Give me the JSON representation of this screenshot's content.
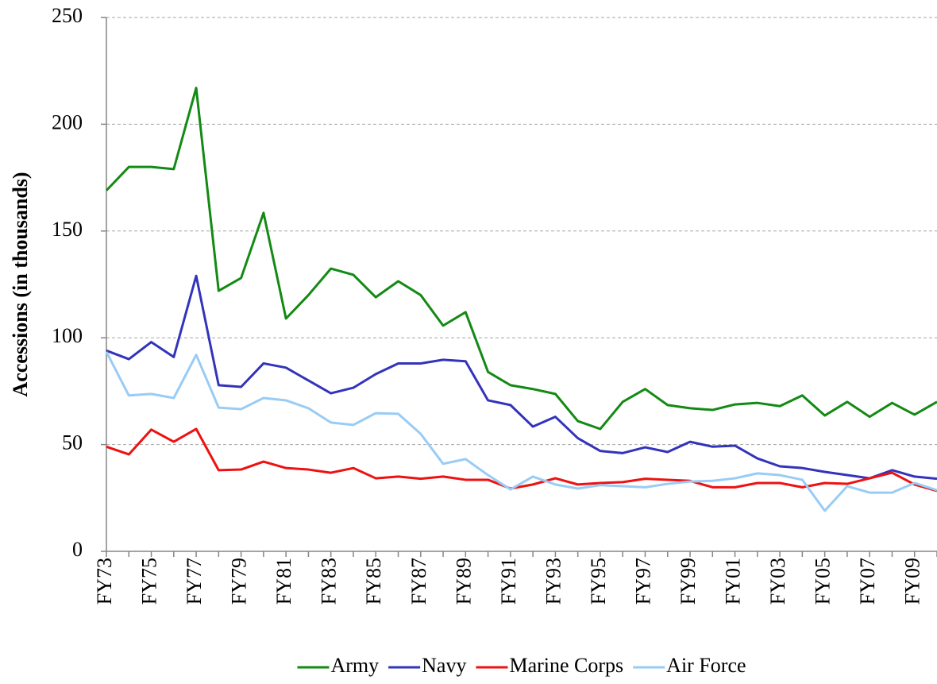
{
  "chart_data": {
    "type": "line",
    "y_label": "Accessions (in thousands)",
    "categories": [
      "FY73",
      null,
      "FY75",
      null,
      "FY77",
      null,
      "FY79",
      null,
      "FY81",
      null,
      "FY83",
      null,
      "FY85",
      null,
      "FY87",
      null,
      "FY89",
      null,
      "FY91",
      null,
      "FY93",
      null,
      "FY95",
      null,
      "FY97",
      null,
      "FY99",
      null,
      "FY01",
      null,
      "FY03",
      null,
      "FY05",
      null,
      "FY07",
      null,
      "FY09",
      null
    ],
    "series": [
      {
        "name": "Army",
        "color": "#138a13",
        "values": [
          169,
          180,
          180,
          179,
          217,
          122,
          128,
          158.5,
          109,
          120,
          132.4,
          129.5,
          119,
          126.5,
          120,
          105.7,
          112,
          84,
          77.8,
          76,
          73.7,
          61,
          57.3,
          70,
          76,
          68.5,
          67,
          66.2,
          68.8,
          69.5,
          68,
          73,
          63.6,
          70,
          63,
          69.5,
          64,
          70
        ]
      },
      {
        "name": "Navy",
        "color": "#3333bb",
        "values": [
          94,
          90,
          98,
          91,
          129,
          77.8,
          77,
          88,
          86,
          80,
          74,
          76.6,
          83,
          88,
          88,
          89.7,
          89,
          70.7,
          68.5,
          58.4,
          63,
          53,
          47,
          46,
          48.7,
          46.5,
          51.3,
          49,
          49.5,
          43.5,
          39.8,
          39,
          37.2,
          35.7,
          34.2,
          38,
          35,
          34
        ]
      },
      {
        "name": "Marine Corps",
        "color": "#ee1111",
        "values": [
          49,
          45.4,
          57,
          51.3,
          57.3,
          38,
          38.3,
          42,
          39,
          38.3,
          36.8,
          39,
          34.2,
          35,
          34,
          35,
          33.5,
          33.5,
          29.4,
          31.3,
          34.2,
          31.3,
          32,
          32.4,
          34,
          33.5,
          33,
          30,
          30,
          32,
          32,
          30,
          32,
          31.6,
          34.2,
          36.8,
          31.3,
          28.3
        ]
      },
      {
        "name": "Air Force",
        "color": "#99ccf5",
        "values": [
          93.4,
          73,
          73.7,
          71.8,
          92,
          67.3,
          66.6,
          71.8,
          70.7,
          67,
          60.3,
          59.2,
          64.7,
          64.4,
          55,
          41,
          43.2,
          35.7,
          29,
          35,
          31.3,
          29.4,
          31,
          30.5,
          30,
          31.6,
          32.7,
          33,
          34.2,
          36.5,
          35.7,
          33.5,
          19,
          30.5,
          27.5,
          27.5,
          32,
          28.6
        ]
      }
    ],
    "ylim": [
      0,
      250
    ],
    "yticks": [
      0,
      50,
      100,
      150,
      200,
      250
    ],
    "grid": true,
    "legend": "bottom"
  }
}
